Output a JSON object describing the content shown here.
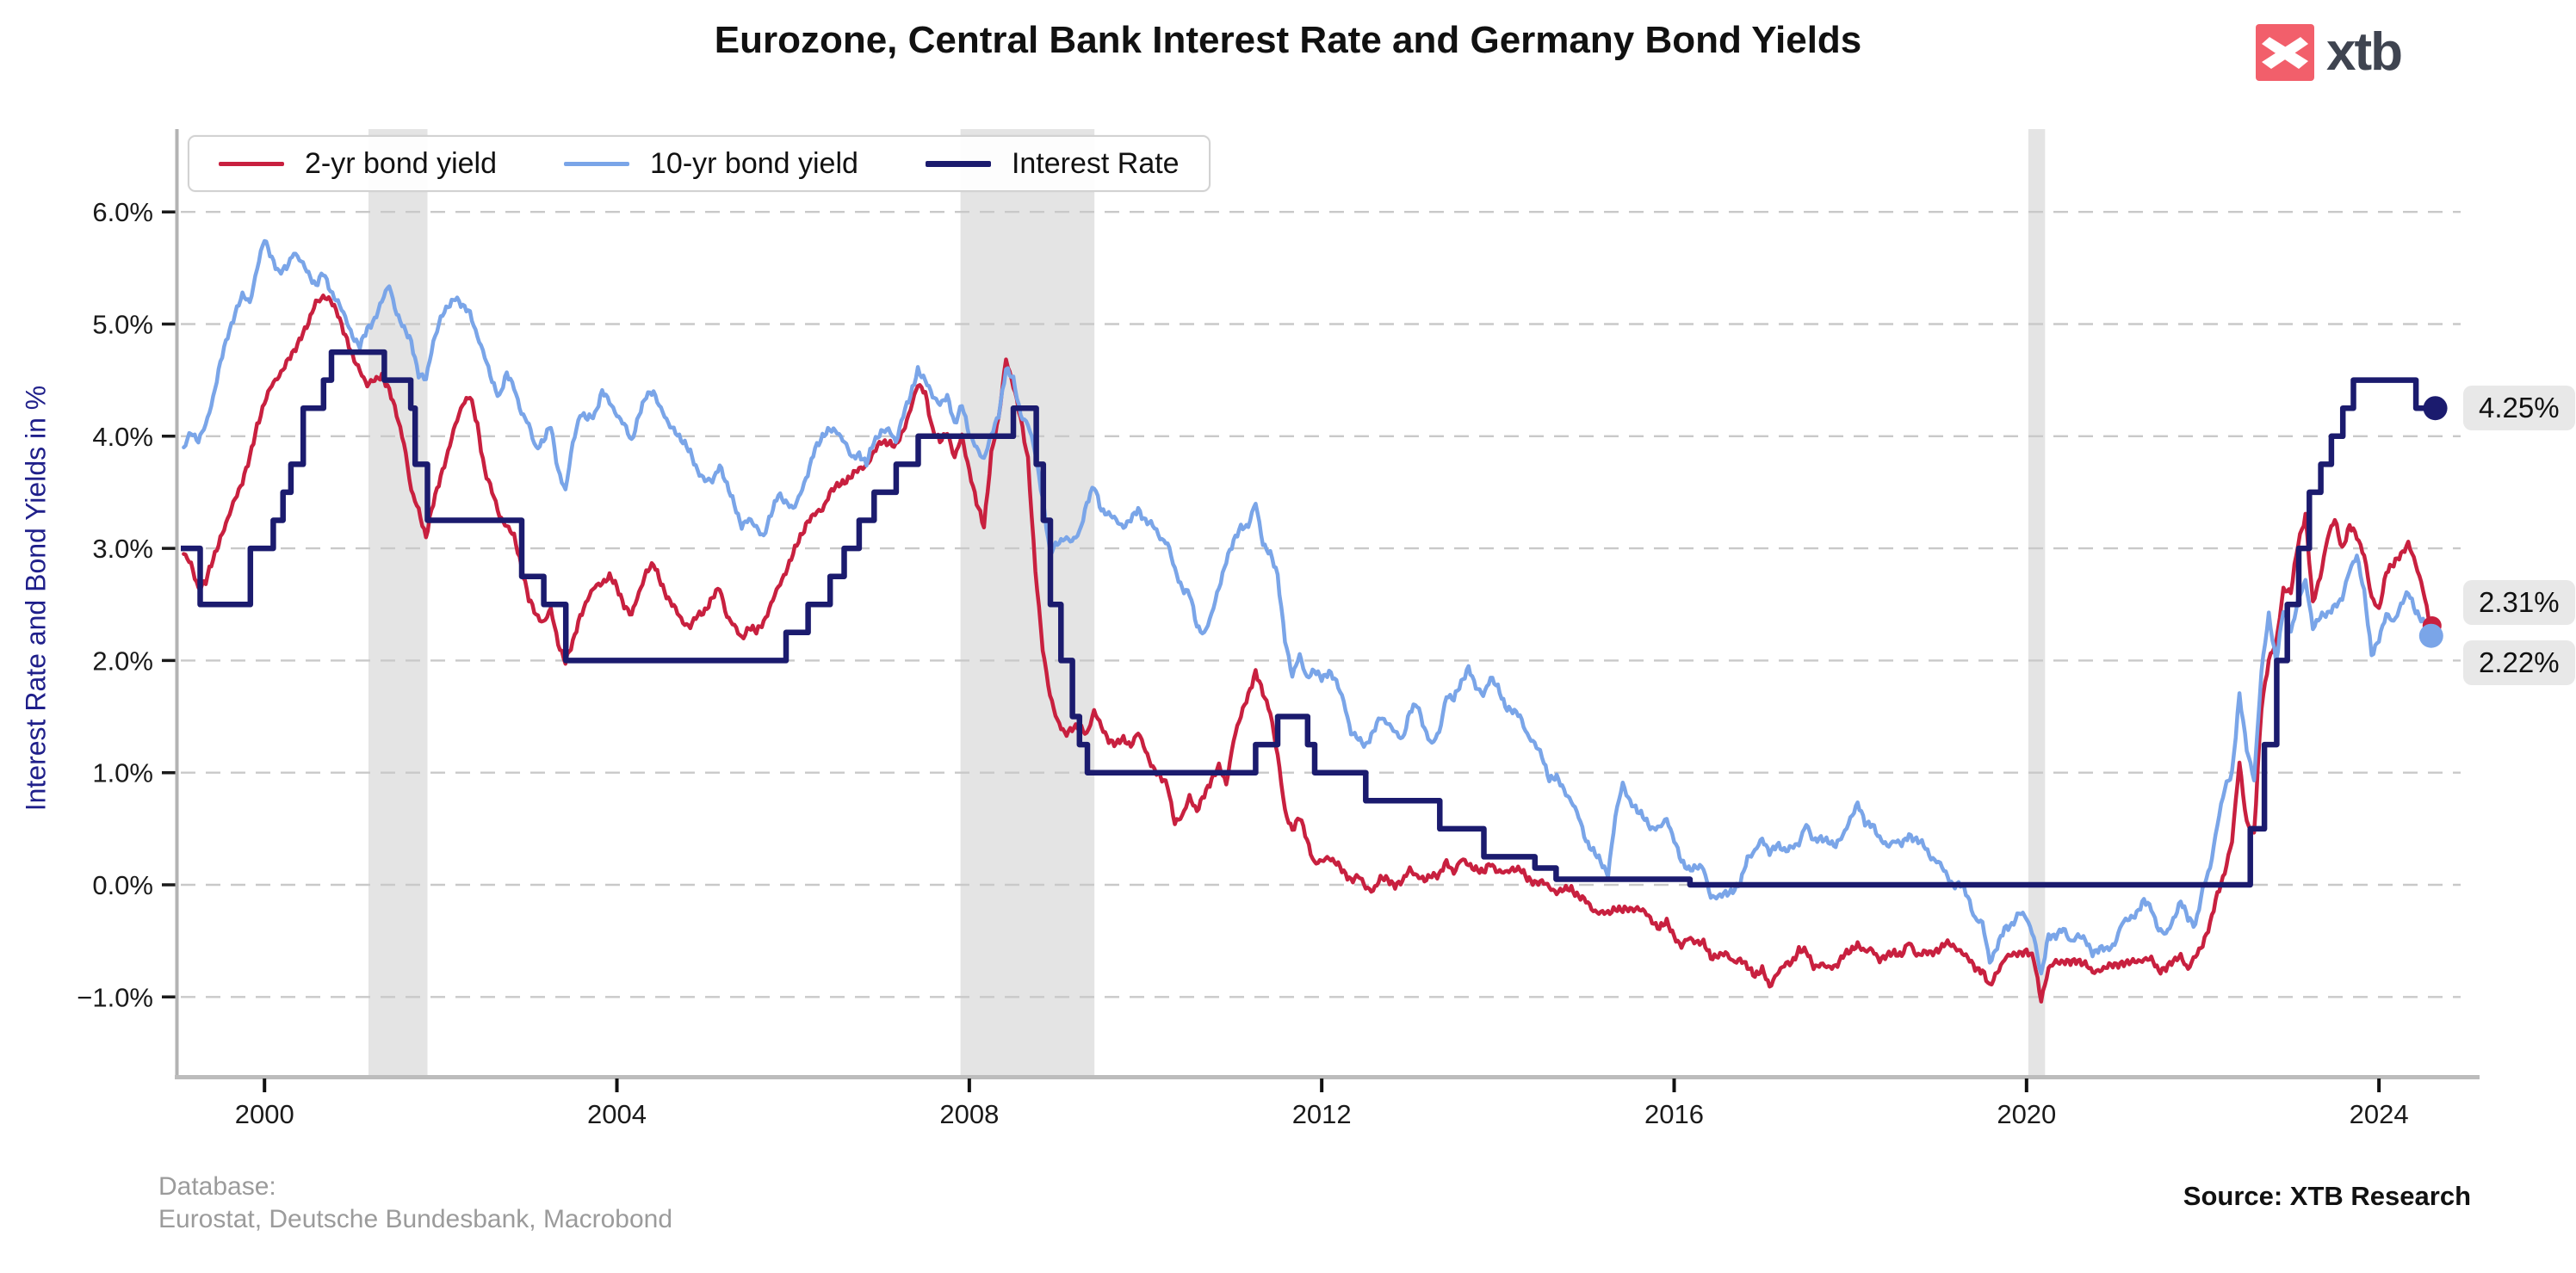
{
  "logo": {
    "text": "xtb",
    "icon": "xtb-x-mark",
    "square_color": "#f25f6b",
    "text_color": "#3f4450"
  },
  "footer": {
    "database_label": "Database:",
    "database_value": "Eurostat, Deutsche Bundesbank, Macrobond",
    "source": "Source: XTB Research"
  },
  "chart_data": {
    "type": "line",
    "title": "Eurozone, Central Bank Interest Rate and Germany Bond Yields",
    "ylabel": "Interest Rate and Bond Yields in %",
    "xlabel": "",
    "legend_position": "top-left",
    "grid": "horizontal-dashed",
    "xlim": [
      1999.05,
      2024.9
    ],
    "ylim": [
      -1.7,
      6.74
    ],
    "x_ticks": [
      2000,
      2004,
      2008,
      2012,
      2016,
      2020,
      2024
    ],
    "y_ticks": [
      {
        "value": 6,
        "label": "6.0%"
      },
      {
        "value": 5,
        "label": "5.0%"
      },
      {
        "value": 4,
        "label": "4.0%"
      },
      {
        "value": 3,
        "label": "3.0%"
      },
      {
        "value": 2,
        "label": "2.0%"
      },
      {
        "value": 1,
        "label": "1.0%"
      },
      {
        "value": 0,
        "label": "0.0%"
      },
      {
        "value": -1,
        "label": "−1.0%"
      }
    ],
    "recession_bands": [
      [
        2001.18,
        2001.85
      ],
      [
        2007.9,
        2009.42
      ],
      [
        2020.02,
        2020.21
      ]
    ],
    "colors": {
      "band": "#e4e4e4",
      "gridline": "#c9c9c9",
      "spine": "#b6b6b6",
      "chip_bg": "#e8e8e8",
      "axis_title": "#1f1f8a"
    },
    "series": [
      {
        "name": "2-yr bond yield",
        "color": "#c8203f",
        "type": "line",
        "start_year_decimal": 1999.083,
        "freq": "monthly",
        "values": [
          2.95,
          2.85,
          2.65,
          2.7,
          2.9,
          3.1,
          3.25,
          3.45,
          3.6,
          3.8,
          4.1,
          4.3,
          4.45,
          4.55,
          4.65,
          4.75,
          4.9,
          5.0,
          5.2,
          5.25,
          5.2,
          5.1,
          4.9,
          4.7,
          4.6,
          4.45,
          4.5,
          4.55,
          4.4,
          4.2,
          3.95,
          3.5,
          3.35,
          3.1,
          3.4,
          3.65,
          3.85,
          4.1,
          4.3,
          4.35,
          4.1,
          3.7,
          3.5,
          3.3,
          3.2,
          3.1,
          2.85,
          2.55,
          2.4,
          2.35,
          2.45,
          2.15,
          2.0,
          2.15,
          2.4,
          2.55,
          2.65,
          2.7,
          2.75,
          2.65,
          2.5,
          2.4,
          2.6,
          2.8,
          2.85,
          2.7,
          2.55,
          2.45,
          2.35,
          2.3,
          2.4,
          2.45,
          2.55,
          2.65,
          2.4,
          2.3,
          2.2,
          2.3,
          2.25,
          2.35,
          2.5,
          2.65,
          2.8,
          2.95,
          3.1,
          3.25,
          3.3,
          3.35,
          3.5,
          3.55,
          3.6,
          3.65,
          3.7,
          3.75,
          3.85,
          3.95,
          3.95,
          3.9,
          4.05,
          4.25,
          4.45,
          4.4,
          4.05,
          3.95,
          4.05,
          3.8,
          4.0,
          3.7,
          3.4,
          3.2,
          3.85,
          4.15,
          4.7,
          4.45,
          4.15,
          3.8,
          2.8,
          2.1,
          1.7,
          1.45,
          1.35,
          1.4,
          1.4,
          1.35,
          1.55,
          1.4,
          1.3,
          1.25,
          1.3,
          1.25,
          1.35,
          1.2,
          1.05,
          0.95,
          0.9,
          0.55,
          0.6,
          0.8,
          0.65,
          0.8,
          0.95,
          1.05,
          0.9,
          1.3,
          1.5,
          1.7,
          1.9,
          1.7,
          1.55,
          1.15,
          0.65,
          0.5,
          0.6,
          0.4,
          0.2,
          0.2,
          0.25,
          0.2,
          0.1,
          0.05,
          0.08,
          -0.03,
          -0.04,
          0.05,
          0.05,
          0.0,
          0.02,
          0.15,
          0.08,
          0.03,
          0.1,
          0.08,
          0.2,
          0.12,
          0.22,
          0.18,
          0.15,
          0.1,
          0.2,
          0.12,
          0.1,
          0.15,
          0.14,
          0.05,
          0.03,
          0.02,
          -0.02,
          -0.06,
          -0.05,
          -0.03,
          -0.1,
          -0.15,
          -0.22,
          -0.25,
          -0.26,
          -0.2,
          -0.23,
          -0.22,
          -0.2,
          -0.25,
          -0.32,
          -0.38,
          -0.34,
          -0.45,
          -0.55,
          -0.48,
          -0.5,
          -0.52,
          -0.65,
          -0.62,
          -0.62,
          -0.68,
          -0.66,
          -0.74,
          -0.8,
          -0.75,
          -0.92,
          -0.78,
          -0.72,
          -0.7,
          -0.57,
          -0.6,
          -0.73,
          -0.7,
          -0.75,
          -0.72,
          -0.63,
          -0.6,
          -0.52,
          -0.6,
          -0.58,
          -0.66,
          -0.64,
          -0.6,
          -0.62,
          -0.52,
          -0.62,
          -0.6,
          -0.62,
          -0.57,
          -0.52,
          -0.55,
          -0.58,
          -0.66,
          -0.74,
          -0.76,
          -0.92,
          -0.77,
          -0.66,
          -0.63,
          -0.6,
          -0.6,
          -0.66,
          -1.02,
          -0.76,
          -0.68,
          -0.68,
          -0.7,
          -0.67,
          -0.7,
          -0.79,
          -0.75,
          -0.73,
          -0.72,
          -0.69,
          -0.7,
          -0.68,
          -0.66,
          -0.67,
          -0.76,
          -0.74,
          -0.69,
          -0.62,
          -0.76,
          -0.64,
          -0.52,
          -0.36,
          -0.08,
          0.12,
          0.38,
          1.1,
          0.55,
          0.45,
          1.6,
          2.0,
          2.15,
          2.65,
          2.6,
          3.05,
          3.3,
          2.5,
          2.75,
          3.1,
          3.25,
          3.0,
          3.2,
          3.1,
          2.95,
          2.55,
          2.45,
          2.8,
          2.85,
          2.95,
          3.05,
          2.85,
          2.65,
          2.31
        ]
      },
      {
        "name": "10-yr bond yield",
        "color": "#7aa5e8",
        "type": "line",
        "start_year_decimal": 1999.083,
        "freq": "monthly",
        "values": [
          3.9,
          4.05,
          3.95,
          4.1,
          4.35,
          4.65,
          4.9,
          5.1,
          5.25,
          5.2,
          5.5,
          5.75,
          5.6,
          5.45,
          5.5,
          5.65,
          5.55,
          5.45,
          5.35,
          5.45,
          5.3,
          5.2,
          5.05,
          4.9,
          4.8,
          4.95,
          5.05,
          5.2,
          5.35,
          5.1,
          4.95,
          4.85,
          4.55,
          4.5,
          4.85,
          5.05,
          5.15,
          5.25,
          5.15,
          5.1,
          4.9,
          4.7,
          4.5,
          4.35,
          4.55,
          4.45,
          4.2,
          4.1,
          3.9,
          3.95,
          4.1,
          3.7,
          3.5,
          3.95,
          4.2,
          4.15,
          4.2,
          4.4,
          4.3,
          4.2,
          4.1,
          3.95,
          4.2,
          4.35,
          4.4,
          4.25,
          4.1,
          4.05,
          3.95,
          3.85,
          3.7,
          3.6,
          3.6,
          3.75,
          3.55,
          3.4,
          3.2,
          3.25,
          3.2,
          3.1,
          3.3,
          3.5,
          3.4,
          3.35,
          3.5,
          3.65,
          3.9,
          4.0,
          4.05,
          4.05,
          3.95,
          3.8,
          3.85,
          3.75,
          3.95,
          4.05,
          4.05,
          3.95,
          4.2,
          4.35,
          4.6,
          4.5,
          4.35,
          4.3,
          4.35,
          4.1,
          4.3,
          4.0,
          3.9,
          3.8,
          4.0,
          4.2,
          4.6,
          4.5,
          4.2,
          4.1,
          3.85,
          3.45,
          2.95,
          3.05,
          3.1,
          3.05,
          3.15,
          3.4,
          3.55,
          3.35,
          3.3,
          3.25,
          3.2,
          3.25,
          3.35,
          3.25,
          3.2,
          3.1,
          3.05,
          2.8,
          2.65,
          2.6,
          2.3,
          2.25,
          2.4,
          2.65,
          2.9,
          3.05,
          3.2,
          3.2,
          3.4,
          3.05,
          2.95,
          2.75,
          2.2,
          1.85,
          2.05,
          1.85,
          1.9,
          1.85,
          1.9,
          1.8,
          1.65,
          1.35,
          1.3,
          1.25,
          1.35,
          1.5,
          1.45,
          1.35,
          1.3,
          1.55,
          1.6,
          1.4,
          1.25,
          1.35,
          1.7,
          1.65,
          1.8,
          1.95,
          1.75,
          1.7,
          1.85,
          1.75,
          1.6,
          1.55,
          1.5,
          1.35,
          1.25,
          1.15,
          0.95,
          0.95,
          0.85,
          0.75,
          0.6,
          0.4,
          0.3,
          0.2,
          0.1,
          0.6,
          0.9,
          0.75,
          0.65,
          0.6,
          0.5,
          0.5,
          0.6,
          0.4,
          0.2,
          0.15,
          0.15,
          0.15,
          -0.1,
          -0.12,
          -0.07,
          -0.05,
          0.0,
          0.25,
          0.3,
          0.4,
          0.3,
          0.35,
          0.3,
          0.35,
          0.35,
          0.55,
          0.4,
          0.4,
          0.4,
          0.35,
          0.43,
          0.6,
          0.72,
          0.55,
          0.55,
          0.4,
          0.35,
          0.4,
          0.35,
          0.45,
          0.4,
          0.35,
          0.25,
          0.2,
          0.1,
          0.0,
          0.0,
          -0.1,
          -0.3,
          -0.35,
          -0.68,
          -0.55,
          -0.4,
          -0.35,
          -0.25,
          -0.3,
          -0.45,
          -0.82,
          -0.45,
          -0.45,
          -0.4,
          -0.5,
          -0.45,
          -0.5,
          -0.6,
          -0.57,
          -0.58,
          -0.52,
          -0.35,
          -0.3,
          -0.25,
          -0.15,
          -0.2,
          -0.4,
          -0.45,
          -0.3,
          -0.15,
          -0.3,
          -0.35,
          -0.05,
          0.15,
          0.55,
          0.85,
          1.0,
          1.7,
          1.2,
          0.95,
          1.9,
          2.4,
          2.0,
          2.45,
          2.25,
          2.55,
          2.7,
          2.3,
          2.4,
          2.4,
          2.5,
          2.55,
          2.8,
          2.95,
          2.6,
          2.05,
          2.2,
          2.4,
          2.35,
          2.5,
          2.6,
          2.45,
          2.35,
          2.22
        ]
      },
      {
        "name": "Interest Rate",
        "color": "#1b1b6e",
        "type": "step",
        "points": [
          [
            1999.05,
            3.0
          ],
          [
            1999.27,
            2.5
          ],
          [
            1999.84,
            3.0
          ],
          [
            2000.1,
            3.25
          ],
          [
            2000.21,
            3.5
          ],
          [
            2000.3,
            3.75
          ],
          [
            2000.44,
            4.25
          ],
          [
            2000.67,
            4.5
          ],
          [
            2000.76,
            4.75
          ],
          [
            2001.36,
            4.5
          ],
          [
            2001.66,
            4.25
          ],
          [
            2001.71,
            3.75
          ],
          [
            2001.85,
            3.25
          ],
          [
            2002.92,
            2.75
          ],
          [
            2003.17,
            2.5
          ],
          [
            2003.42,
            2.0
          ],
          [
            2005.92,
            2.25
          ],
          [
            2006.17,
            2.5
          ],
          [
            2006.42,
            2.75
          ],
          [
            2006.58,
            3.0
          ],
          [
            2006.75,
            3.25
          ],
          [
            2006.92,
            3.5
          ],
          [
            2007.17,
            3.75
          ],
          [
            2007.42,
            4.0
          ],
          [
            2008.5,
            4.25
          ],
          [
            2008.76,
            3.75
          ],
          [
            2008.84,
            3.25
          ],
          [
            2008.92,
            2.5
          ],
          [
            2009.04,
            2.0
          ],
          [
            2009.17,
            1.5
          ],
          [
            2009.25,
            1.25
          ],
          [
            2009.34,
            1.0
          ],
          [
            2011.25,
            1.25
          ],
          [
            2011.5,
            1.5
          ],
          [
            2011.84,
            1.25
          ],
          [
            2011.92,
            1.0
          ],
          [
            2012.5,
            0.75
          ],
          [
            2013.34,
            0.5
          ],
          [
            2013.84,
            0.25
          ],
          [
            2014.42,
            0.15
          ],
          [
            2014.66,
            0.05
          ],
          [
            2016.18,
            0.0
          ],
          [
            2022.54,
            0.5
          ],
          [
            2022.7,
            1.25
          ],
          [
            2022.84,
            2.0
          ],
          [
            2022.96,
            2.5
          ],
          [
            2023.09,
            3.0
          ],
          [
            2023.21,
            3.5
          ],
          [
            2023.34,
            3.75
          ],
          [
            2023.46,
            4.0
          ],
          [
            2023.59,
            4.25
          ],
          [
            2023.71,
            4.5
          ],
          [
            2024.42,
            4.25
          ],
          [
            2024.62,
            4.25
          ]
        ]
      }
    ],
    "end_labels": [
      {
        "text": "4.25%",
        "series": "Interest Rate",
        "value": 4.25
      },
      {
        "text": "2.31%",
        "series": "2-yr bond yield",
        "value": 2.31
      },
      {
        "text": "2.22%",
        "series": "10-yr bond yield",
        "value": 2.22
      }
    ]
  }
}
